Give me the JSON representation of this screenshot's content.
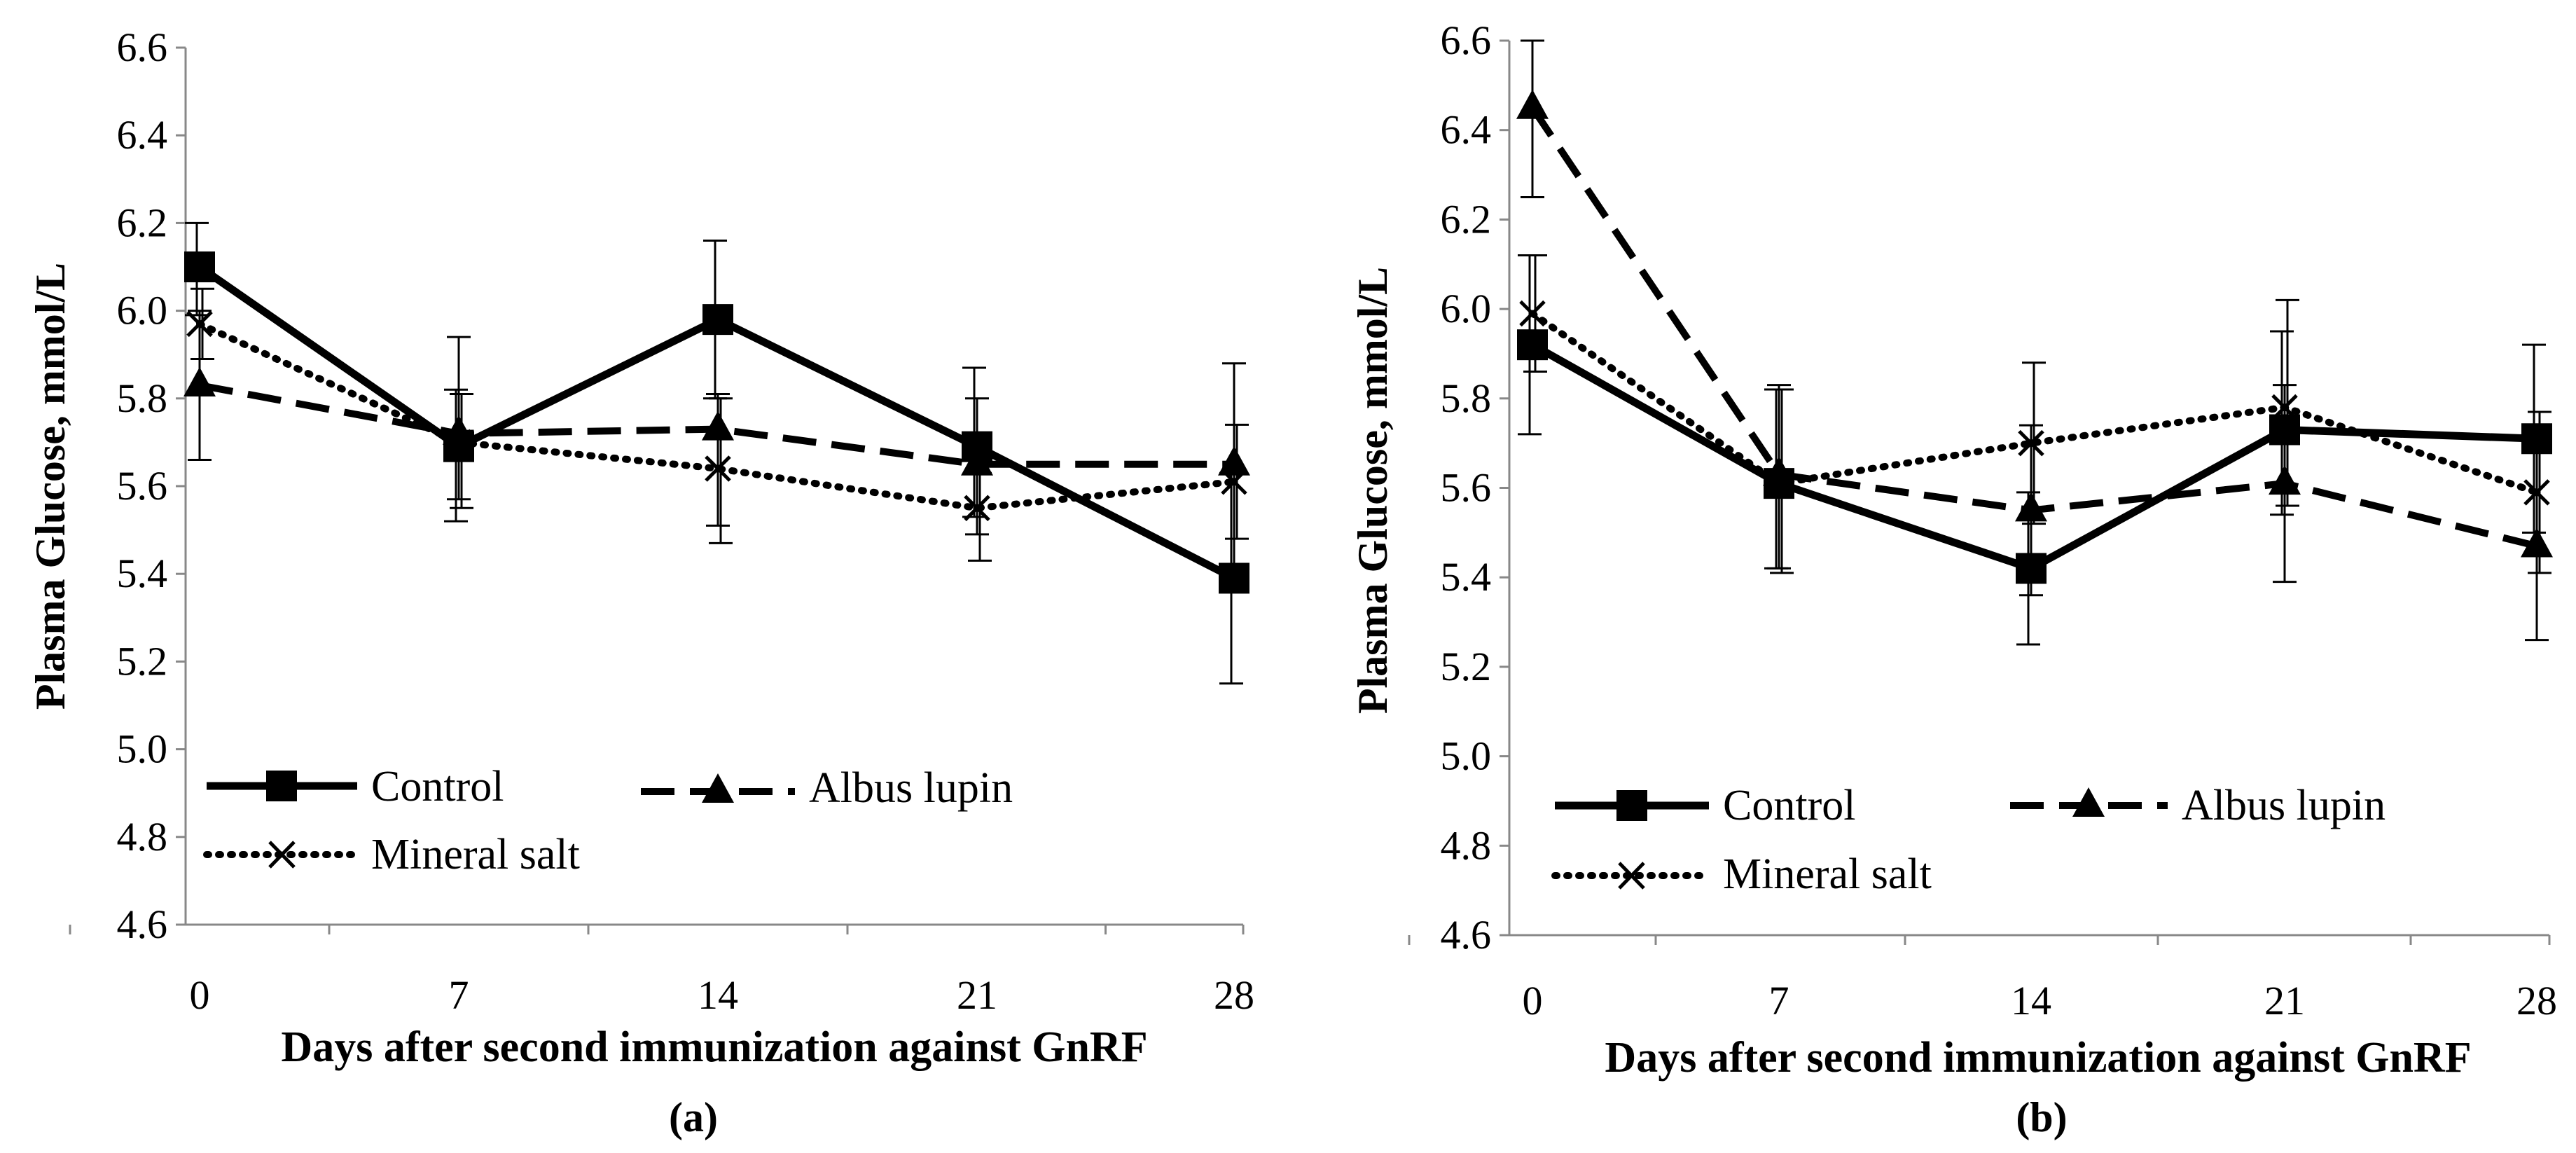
{
  "chart_data": [
    {
      "type": "line",
      "panel_label": "(a)",
      "xlabel": "Days after second immunization against GnRF",
      "ylabel": "Plasma Glucose, mmol/L",
      "categories": [
        "0",
        "7",
        "14",
        "21",
        "28"
      ],
      "x": [
        0,
        7,
        14,
        21,
        28
      ],
      "ylim": [
        4.6,
        6.6
      ],
      "yticks": [
        "4.6",
        "4.8",
        "5.0",
        "5.2",
        "5.4",
        "5.6",
        "5.8",
        "6.0",
        "6.2",
        "6.4",
        "6.6"
      ],
      "legend_position": "bottom-left",
      "series": [
        {
          "name": "Control",
          "style": "solid",
          "marker": "square",
          "values": [
            6.1,
            5.69,
            5.98,
            5.69,
            5.39
          ],
          "err_low": [
            5.99,
            5.52,
            5.8,
            5.53,
            5.15
          ],
          "err_high": [
            6.2,
            5.82,
            6.16,
            5.87,
            5.63
          ]
        },
        {
          "name": "Albus lupin",
          "style": "dashed",
          "marker": "triangle",
          "values": [
            5.83,
            5.72,
            5.73,
            5.65,
            5.65
          ],
          "err_low": [
            5.66,
            5.57,
            5.51,
            5.49,
            5.42
          ],
          "err_high": [
            6.0,
            5.94,
            5.81,
            5.8,
            5.88
          ]
        },
        {
          "name": "Mineral salt",
          "style": "dotted",
          "marker": "x",
          "values": [
            5.97,
            5.7,
            5.64,
            5.55,
            5.61
          ],
          "err_low": [
            5.89,
            5.55,
            5.47,
            5.43,
            5.48
          ],
          "err_high": [
            6.05,
            5.81,
            5.8,
            5.63,
            5.74
          ]
        }
      ]
    },
    {
      "type": "line",
      "panel_label": "(b)",
      "xlabel": "Days after second immunization against GnRF",
      "ylabel": "Plasma Glucose, mmol/L",
      "categories": [
        "0",
        "7",
        "14",
        "21",
        "28"
      ],
      "x": [
        0,
        7,
        14,
        21,
        28
      ],
      "ylim": [
        4.6,
        6.6
      ],
      "yticks": [
        "4.6",
        "4.8",
        "5.0",
        "5.2",
        "5.4",
        "5.6",
        "5.8",
        "6.0",
        "6.2",
        "6.4",
        "6.6"
      ],
      "legend_position": "bottom-left",
      "series": [
        {
          "name": "Control",
          "style": "solid",
          "marker": "square",
          "values": [
            5.92,
            5.61,
            5.42,
            5.73,
            5.71
          ],
          "err_low": [
            5.72,
            5.42,
            5.25,
            5.54,
            5.5
          ],
          "err_high": [
            6.12,
            5.82,
            5.59,
            5.95,
            5.92
          ]
        },
        {
          "name": "Albus lupin",
          "style": "dashed",
          "marker": "triangle",
          "values": [
            6.45,
            5.63,
            5.55,
            5.61,
            5.47
          ],
          "err_low": [
            6.25,
            5.42,
            5.36,
            5.39,
            5.26
          ],
          "err_high": [
            6.6,
            5.83,
            5.74,
            5.83,
            5.68
          ]
        },
        {
          "name": "Mineral salt",
          "style": "dotted",
          "marker": "x",
          "values": [
            5.99,
            5.61,
            5.7,
            5.78,
            5.59
          ],
          "err_low": [
            5.86,
            5.41,
            5.52,
            5.56,
            5.41
          ],
          "err_high": [
            6.12,
            5.82,
            5.88,
            6.02,
            5.77
          ]
        }
      ]
    }
  ]
}
